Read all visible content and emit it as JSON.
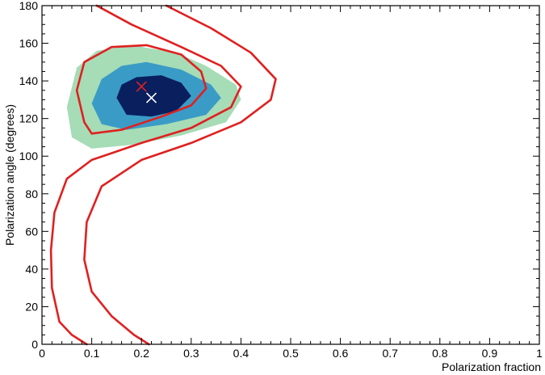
{
  "chart_data": {
    "type": "contour",
    "title": "",
    "xlabel": "Polarization fraction",
    "ylabel": "Polarization angle (degrees)",
    "xlim": [
      0,
      1
    ],
    "ylim": [
      0,
      180
    ],
    "x_ticks": [
      0,
      0.1,
      0.2,
      0.3,
      0.4,
      0.5,
      0.6,
      0.7,
      0.8,
      0.9,
      1
    ],
    "x_tick_labels": [
      "0",
      "0.1",
      "0.2",
      "0.3",
      "0.4",
      "0.5",
      "0.6",
      "0.7",
      "0.8",
      "0.9",
      "1"
    ],
    "y_ticks": [
      0,
      20,
      40,
      60,
      80,
      100,
      120,
      140,
      160,
      180
    ],
    "y_tick_labels": [
      "0",
      "20",
      "40",
      "60",
      "80",
      "100",
      "120",
      "140",
      "160",
      "180"
    ],
    "grid": false,
    "legend": "none",
    "filled_contours": [
      {
        "level": "outer",
        "color": "#a6dcb6",
        "center": [
          0.165,
          132
        ],
        "x_extent": [
          0.05,
          0.4
        ],
        "y_extent": [
          104,
          160
        ]
      },
      {
        "level": "middle",
        "color": "#3a9cc6",
        "center": [
          0.175,
          130
        ],
        "x_extent": [
          0.1,
          0.35
        ],
        "y_extent": [
          113,
          150
        ]
      },
      {
        "level": "inner",
        "color": "#0a1f5e",
        "center": [
          0.2,
          131
        ],
        "x_extent": [
          0.15,
          0.3
        ],
        "y_extent": [
          120,
          143
        ]
      }
    ],
    "line_contours": [
      {
        "label": "inner closed",
        "color": "#e02020",
        "x_extent": [
          0.075,
          0.33
        ],
        "y_extent": [
          112,
          160
        ]
      },
      {
        "label": "middle open",
        "color": "#e02020",
        "x_extent": [
          0.02,
          0.4
        ],
        "turning_point": [
          0.4,
          137
        ]
      },
      {
        "label": "outer open",
        "color": "#e02020",
        "x_extent": [
          0.08,
          0.48
        ],
        "turning_point": [
          0.48,
          137
        ]
      }
    ],
    "markers": [
      {
        "symbol": "x",
        "color": "#e02020",
        "x": 0.2,
        "y": 137
      },
      {
        "symbol": "x",
        "color": "#ffffff",
        "x": 0.22,
        "y": 131
      }
    ]
  }
}
